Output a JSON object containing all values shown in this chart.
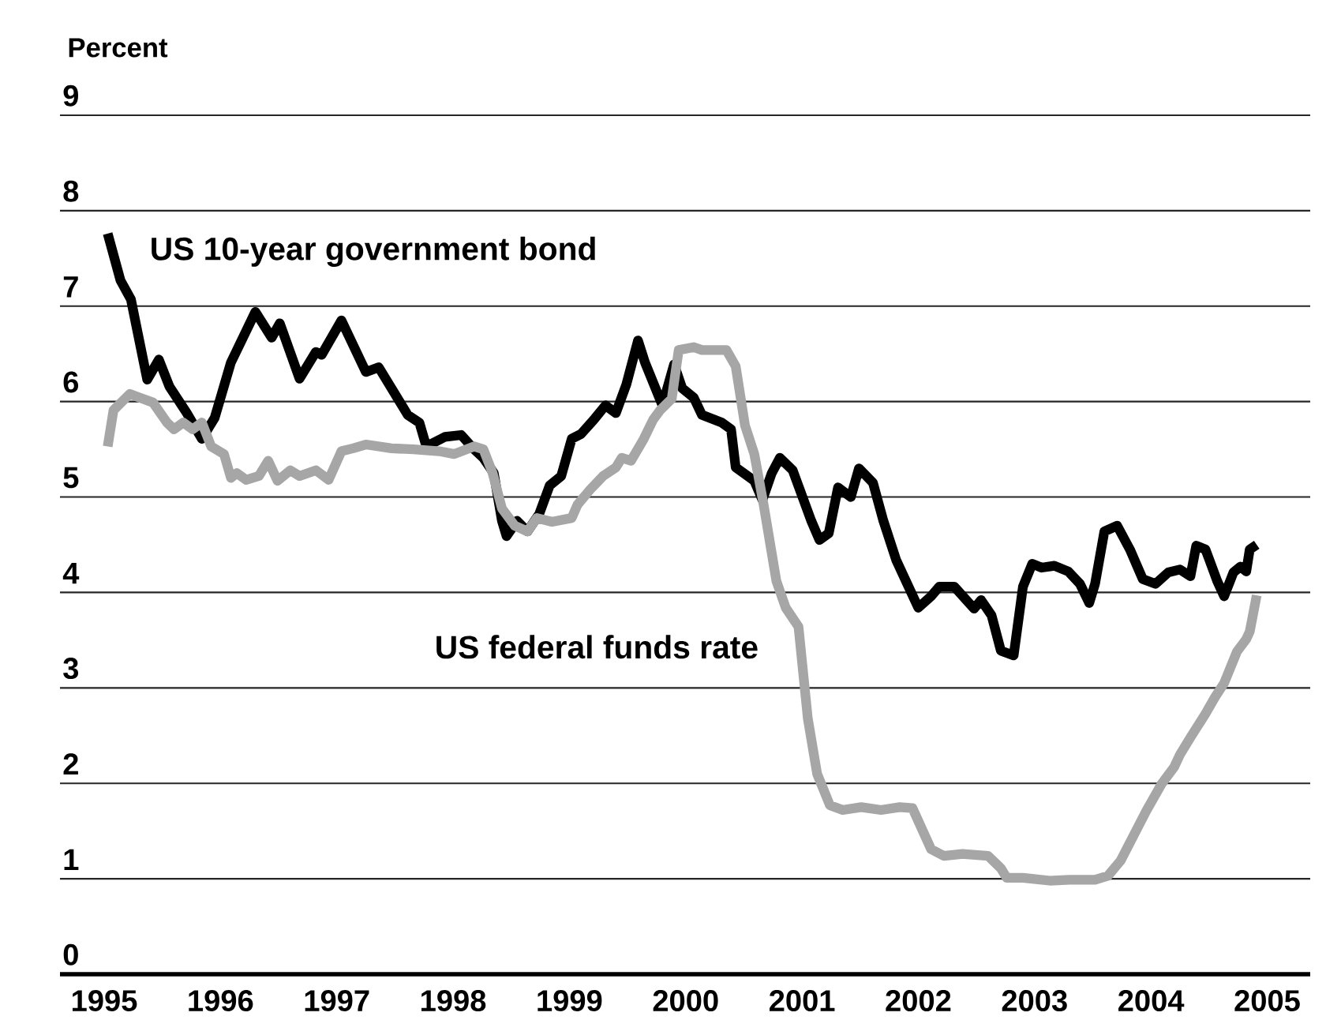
{
  "chart_data": {
    "type": "line",
    "ylabel": "Percent",
    "xlim": [
      1994.62,
      2005.37
    ],
    "ylim": [
      0,
      9
    ],
    "xticks": [
      1995,
      1996,
      1997,
      1998,
      1999,
      2000,
      2001,
      2002,
      2003,
      2004,
      2005
    ],
    "yticks": [
      0,
      1,
      2,
      3,
      4,
      5,
      6,
      7,
      8,
      9
    ],
    "grid": "y",
    "legend": false,
    "series": [
      {
        "name": "US 10-year government bond",
        "color": "#000000",
        "x": [
          1995.03,
          1995.14,
          1995.23,
          1995.37,
          1995.47,
          1995.56,
          1995.71,
          1995.84,
          1995.95,
          1996.09,
          1996.3,
          1996.44,
          1996.51,
          1996.68,
          1996.82,
          1996.87,
          1997.04,
          1997.25,
          1997.36,
          1997.61,
          1997.71,
          1997.77,
          1997.93,
          1998.07,
          1998.18,
          1998.26,
          1998.35,
          1998.42,
          1998.46,
          1998.55,
          1998.64,
          1998.74,
          1998.83,
          1998.93,
          1999.02,
          1999.1,
          1999.21,
          1999.31,
          1999.4,
          1999.49,
          1999.59,
          1999.65,
          1999.8,
          1999.9,
          1999.97,
          2000.07,
          2000.14,
          2000.31,
          2000.39,
          2000.43,
          2000.59,
          2000.66,
          2000.74,
          2000.81,
          2000.92,
          2001.08,
          2001.15,
          2001.23,
          2001.31,
          2001.42,
          2001.49,
          2001.61,
          2001.7,
          2001.81,
          2002.0,
          2002.11,
          2002.18,
          2002.31,
          2002.48,
          2002.54,
          2002.63,
          2002.71,
          2002.82,
          2002.9,
          2002.98,
          2003.06,
          2003.17,
          2003.29,
          2003.39,
          2003.47,
          2003.52,
          2003.6,
          2003.71,
          2003.82,
          2003.93,
          2004.04,
          2004.15,
          2004.25,
          2004.34,
          2004.39,
          2004.47,
          2004.57,
          2004.63,
          2004.71,
          2004.77,
          2004.82,
          2004.85,
          2004.91
        ],
        "values": [
          7.76,
          7.27,
          7.07,
          6.23,
          6.44,
          6.16,
          5.88,
          5.61,
          5.83,
          6.41,
          6.94,
          6.67,
          6.82,
          6.24,
          6.52,
          6.49,
          6.85,
          6.31,
          6.36,
          5.86,
          5.78,
          5.53,
          5.63,
          5.65,
          5.5,
          5.41,
          5.25,
          4.75,
          4.59,
          4.75,
          4.64,
          4.82,
          5.12,
          5.22,
          5.61,
          5.66,
          5.81,
          5.96,
          5.88,
          6.18,
          6.64,
          6.41,
          5.96,
          6.39,
          6.14,
          6.04,
          5.86,
          5.78,
          5.71,
          5.31,
          5.17,
          4.97,
          5.25,
          5.41,
          5.28,
          4.75,
          4.55,
          4.62,
          5.1,
          5.0,
          5.3,
          5.15,
          4.75,
          4.34,
          3.84,
          3.96,
          4.06,
          4.06,
          3.83,
          3.92,
          3.76,
          3.39,
          3.34,
          4.06,
          4.3,
          4.26,
          4.28,
          4.22,
          4.09,
          3.89,
          4.09,
          4.64,
          4.7,
          4.45,
          4.14,
          4.09,
          4.21,
          4.24,
          4.17,
          4.49,
          4.45,
          4.12,
          3.96,
          4.21,
          4.27,
          4.22,
          4.45,
          4.5
        ]
      },
      {
        "name": "US federal funds rate",
        "color": "#a6a6a6",
        "x": [
          1995.03,
          1995.08,
          1995.22,
          1995.33,
          1995.42,
          1995.54,
          1995.6,
          1995.68,
          1995.76,
          1995.84,
          1995.92,
          1996.03,
          1996.09,
          1996.14,
          1996.22,
          1996.33,
          1996.41,
          1996.49,
          1996.6,
          1996.68,
          1996.82,
          1996.93,
          1997.04,
          1997.14,
          1997.25,
          1997.47,
          1997.66,
          1997.88,
          1998.01,
          1998.18,
          1998.26,
          1998.34,
          1998.42,
          1998.53,
          1998.64,
          1998.72,
          1998.85,
          1999.02,
          1999.07,
          1999.18,
          1999.29,
          1999.4,
          1999.45,
          1999.53,
          1999.64,
          1999.72,
          1999.78,
          1999.88,
          1999.94,
          2000.07,
          2000.14,
          2000.35,
          2000.43,
          2000.51,
          2000.59,
          2000.67,
          2000.78,
          2000.86,
          2000.97,
          2001.05,
          2001.13,
          2001.24,
          2001.35,
          2001.51,
          2001.68,
          2001.84,
          2001.95,
          2002.11,
          2002.22,
          2002.38,
          2002.6,
          2002.71,
          2002.76,
          2002.9,
          2003.13,
          2003.3,
          2003.52,
          2003.63,
          2003.74,
          2003.96,
          2004.09,
          2004.2,
          2004.25,
          2004.34,
          2004.47,
          2004.55,
          2004.63,
          2004.74,
          2004.82,
          2004.85,
          2004.91
        ],
        "values": [
          5.53,
          5.91,
          6.08,
          6.03,
          5.99,
          5.78,
          5.71,
          5.78,
          5.71,
          5.78,
          5.53,
          5.45,
          5.2,
          5.25,
          5.18,
          5.22,
          5.38,
          5.17,
          5.28,
          5.22,
          5.28,
          5.18,
          5.48,
          5.51,
          5.55,
          5.51,
          5.5,
          5.48,
          5.45,
          5.53,
          5.5,
          5.25,
          4.88,
          4.7,
          4.64,
          4.78,
          4.74,
          4.78,
          4.92,
          5.08,
          5.22,
          5.31,
          5.41,
          5.38,
          5.61,
          5.81,
          5.91,
          6.03,
          6.54,
          6.57,
          6.54,
          6.54,
          6.37,
          5.75,
          5.45,
          4.92,
          4.12,
          3.84,
          3.64,
          2.68,
          2.1,
          1.77,
          1.72,
          1.75,
          1.72,
          1.75,
          1.74,
          1.31,
          1.24,
          1.26,
          1.24,
          1.11,
          1.01,
          1.01,
          0.98,
          0.99,
          0.99,
          1.03,
          1.19,
          1.71,
          1.99,
          2.17,
          2.3,
          2.48,
          2.73,
          2.9,
          3.05,
          3.38,
          3.51,
          3.59,
          3.97
        ]
      }
    ]
  }
}
